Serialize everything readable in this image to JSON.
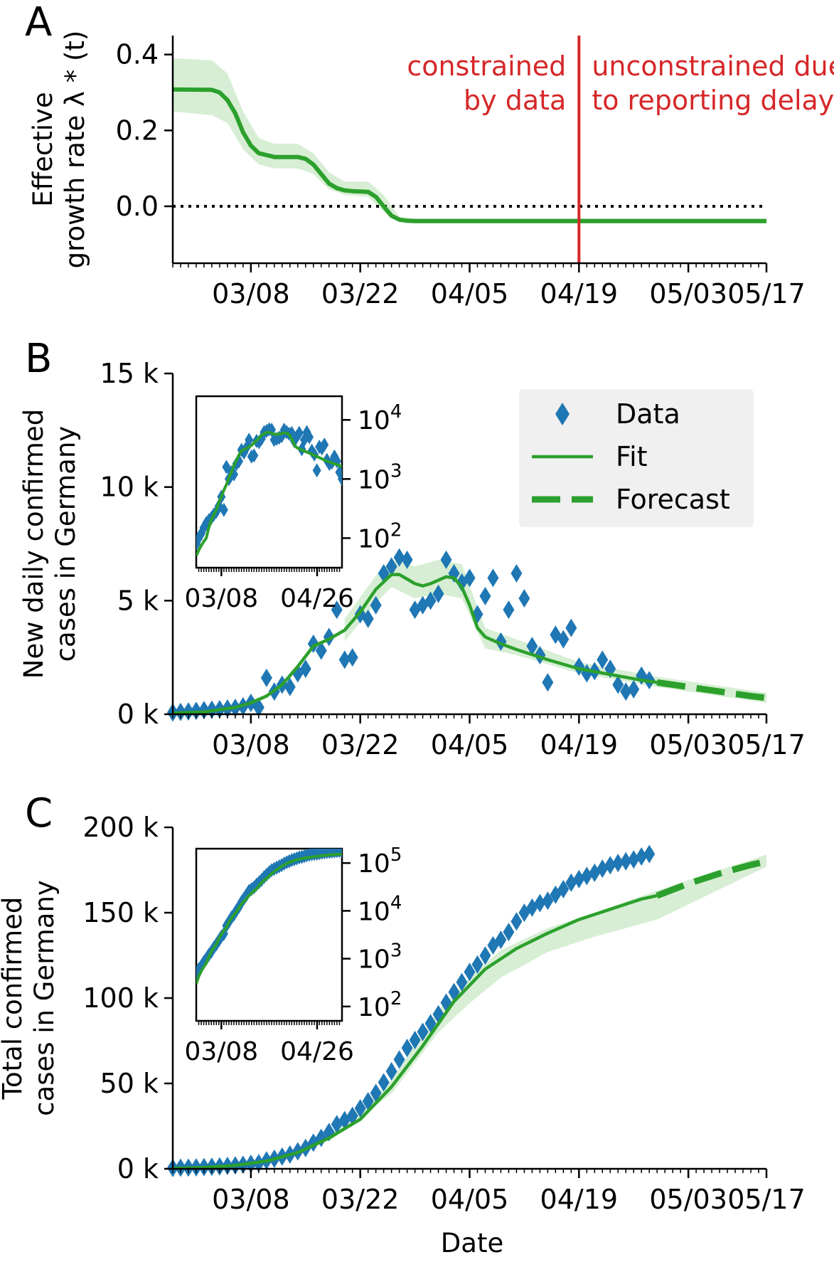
{
  "colors": {
    "data": "#1f77b4",
    "fit": "#2ca02c",
    "band": "#c9e8c6",
    "vline": "#d62728",
    "axis": "#000000",
    "legend_bg": "#f0f0f0"
  },
  "x_dates": [
    "03/08",
    "03/22",
    "04/05",
    "04/19",
    "05/03",
    "05/17"
  ],
  "x_label": "Date",
  "chart_data": [
    {
      "id": "A",
      "type": "line",
      "letter": "A",
      "ylabel_line1": "Effective",
      "ylabel_line2": "growth rate λ * (t)",
      "xlim_day": [
        -4,
        72
      ],
      "ylim": [
        -0.15,
        0.45
      ],
      "yticks": [
        0.0,
        0.2,
        0.4
      ],
      "ytick_labels": [
        "0.0",
        "0.2",
        "0.4"
      ],
      "xticks_day": [
        6,
        20,
        34,
        48,
        62,
        76
      ],
      "zero_line": 0,
      "vline_day": 48,
      "annotation_left": [
        "constrained",
        "by data"
      ],
      "annotation_right": [
        "unconstrained due",
        "to reporting delay"
      ],
      "fit": {
        "x": [
          -4,
          1,
          2,
          3,
          4,
          5,
          6,
          7,
          8,
          9,
          12,
          13,
          14,
          15,
          16,
          17,
          18,
          19,
          21,
          22,
          23,
          24,
          25,
          26,
          27,
          30,
          35,
          40,
          50,
          60,
          72
        ],
        "y": [
          0.308,
          0.307,
          0.3,
          0.28,
          0.245,
          0.195,
          0.16,
          0.14,
          0.135,
          0.13,
          0.13,
          0.125,
          0.11,
          0.085,
          0.06,
          0.048,
          0.042,
          0.04,
          0.038,
          0.025,
          0.0,
          -0.025,
          -0.035,
          -0.038,
          -0.039,
          -0.039,
          -0.039,
          -0.039,
          -0.039,
          -0.039,
          -0.039
        ]
      },
      "band": {
        "x": [
          -4,
          1,
          3,
          5,
          7,
          9,
          12,
          14,
          16,
          18,
          21,
          23,
          25,
          27,
          30,
          72
        ],
        "low": [
          0.25,
          0.24,
          0.22,
          0.15,
          0.11,
          0.1,
          0.1,
          0.085,
          0.045,
          0.03,
          0.025,
          -0.015,
          -0.042,
          -0.045,
          -0.045,
          -0.045
        ],
        "high": [
          0.39,
          0.385,
          0.35,
          0.25,
          0.18,
          0.165,
          0.165,
          0.14,
          0.09,
          0.065,
          0.065,
          0.03,
          -0.028,
          -0.032,
          -0.032,
          -0.032
        ]
      }
    },
    {
      "id": "B",
      "type": "scatter",
      "letter": "B",
      "ylabel_line1": "New daily confirmed",
      "ylabel_line2": "cases in Germany",
      "xlim_day": [
        -4,
        72
      ],
      "ylim": [
        0,
        15000
      ],
      "yticks": [
        0,
        5000,
        10000,
        15000
      ],
      "ytick_labels": [
        "0 k",
        "5 k",
        "10 k",
        "15 k"
      ],
      "xticks_day": [
        6,
        20,
        34,
        48,
        62,
        76
      ],
      "data": {
        "x": [
          -4,
          -3,
          -2,
          -1,
          0,
          1,
          2,
          3,
          4,
          5,
          6,
          7,
          8,
          9,
          10,
          11,
          12,
          13,
          14,
          15,
          16,
          17,
          18,
          19,
          20,
          21,
          22,
          23,
          24,
          25,
          26,
          27,
          28,
          29,
          30,
          31,
          32,
          33,
          34,
          35,
          36,
          37,
          38,
          39,
          40,
          41,
          42,
          43,
          44,
          45,
          46,
          47,
          48,
          49,
          50,
          51,
          52,
          53,
          54,
          55,
          56,
          57
        ],
        "y": [
          80,
          100,
          120,
          150,
          180,
          200,
          220,
          250,
          280,
          350,
          500,
          300,
          1600,
          1000,
          1300,
          1200,
          1800,
          2000,
          3100,
          2800,
          3400,
          4600,
          2400,
          2500,
          4400,
          4200,
          4800,
          6200,
          6500,
          6900,
          6800,
          4600,
          4800,
          5000,
          5300,
          6800,
          6200,
          5800,
          6000,
          4400,
          5200,
          6000,
          3200,
          4600,
          6200,
          5100,
          3000,
          2600,
          1400,
          3500,
          3300,
          3800,
          2100,
          1800,
          1900,
          2400,
          2000,
          1300,
          1000,
          1100,
          1700,
          1500
        ]
      },
      "fit": {
        "x": [
          -4,
          0,
          4,
          6,
          8,
          10,
          12,
          14,
          16,
          18,
          20,
          22,
          24,
          25,
          26,
          27,
          28,
          29,
          30,
          31,
          32,
          33,
          34,
          35,
          36,
          38,
          40,
          44,
          48,
          52,
          56,
          58
        ],
        "y": [
          50,
          100,
          300,
          500,
          800,
          1300,
          2100,
          3000,
          3300,
          3700,
          4500,
          5500,
          6150,
          6150,
          5950,
          5750,
          5650,
          5750,
          5900,
          6050,
          6000,
          5600,
          4800,
          3800,
          3400,
          3100,
          2850,
          2400,
          2000,
          1750,
          1500,
          1400
        ]
      },
      "forecast": {
        "x": [
          58,
          60,
          62,
          64,
          66,
          68,
          70,
          72
        ],
        "y": [
          1400,
          1300,
          1200,
          1100,
          1000,
          900,
          800,
          720
        ]
      },
      "band": {
        "x": [
          18,
          22,
          24,
          27,
          30,
          33,
          36,
          40,
          48,
          58,
          72
        ],
        "low": [
          3200,
          4900,
          5600,
          5100,
          5300,
          5100,
          2900,
          2600,
          1800,
          1200,
          500
        ],
        "high": [
          4200,
          6100,
          6800,
          6500,
          6800,
          6600,
          3800,
          3300,
          2300,
          1650,
          950
        ]
      },
      "legend": [
        {
          "label": "Data",
          "kind": "marker"
        },
        {
          "label": "Fit",
          "kind": "line"
        },
        {
          "label": "Forecast",
          "kind": "dashed"
        }
      ],
      "inset": {
        "scale": "log",
        "ylim_log10": [
          1.5,
          4.4
        ],
        "yticks_log10": [
          2,
          3,
          4
        ],
        "ytick_base": "10",
        "ytick_exp": [
          "2",
          "3",
          "4"
        ],
        "xlim_day": [
          -4,
          54
        ],
        "xtick_labels": [
          "03/08",
          "04/26"
        ],
        "xticks_day": [
          6,
          55
        ]
      }
    },
    {
      "id": "C",
      "type": "scatter",
      "letter": "C",
      "ylabel_line1": "Total confirmed",
      "ylabel_line2": "cases in Germany",
      "xlim_day": [
        -4,
        72
      ],
      "ylim": [
        0,
        200000
      ],
      "yticks": [
        0,
        50000,
        100000,
        150000,
        200000
      ],
      "ytick_labels": [
        "0 k",
        "50 k",
        "100 k",
        "150 k",
        "200 k"
      ],
      "xticks_day": [
        6,
        20,
        34,
        48,
        62,
        76
      ],
      "data": {
        "x": [
          -4,
          -3,
          -2,
          -1,
          0,
          1,
          2,
          3,
          4,
          5,
          6,
          7,
          8,
          9,
          10,
          11,
          12,
          13,
          14,
          15,
          16,
          17,
          18,
          19,
          20,
          21,
          22,
          23,
          24,
          25,
          26,
          27,
          28,
          29,
          30,
          31,
          32,
          33,
          34,
          35,
          36,
          37,
          38,
          39,
          40,
          41,
          42,
          43,
          44,
          45,
          46,
          47,
          48,
          49,
          50,
          51,
          52,
          53,
          54,
          55,
          56,
          57
        ],
        "y": [
          500,
          600,
          700,
          850,
          1000,
          1200,
          1400,
          1700,
          2000,
          2400,
          2900,
          3300,
          4900,
          5900,
          7200,
          8400,
          10200,
          12200,
          15300,
          18100,
          21500,
          26100,
          28500,
          31000,
          35400,
          39600,
          44400,
          50600,
          57100,
          64000,
          70800,
          75400,
          80200,
          85200,
          90500,
          97300,
          103500,
          109300,
          115300,
          119700,
          124900,
          130900,
          134100,
          138700,
          144900,
          150000,
          153000,
          155600,
          157000,
          160500,
          163800,
          167600,
          169700,
          171500,
          173400,
          175800,
          177800,
          179100,
          180100,
          181200,
          182900,
          184400
        ]
      },
      "fit": {
        "x": [
          -4,
          0,
          4,
          8,
          12,
          16,
          20,
          24,
          28,
          32,
          36,
          40,
          44,
          48,
          52,
          56,
          58
        ],
        "y": [
          300,
          800,
          2000,
          4500,
          9500,
          18000,
          29000,
          48000,
          72000,
          98000,
          117000,
          129000,
          138000,
          146000,
          152000,
          158000,
          160000
        ]
      },
      "forecast": {
        "x": [
          58,
          62,
          66,
          70,
          72
        ],
        "y": [
          160000,
          167000,
          173000,
          178000,
          180000
        ]
      },
      "band": {
        "x": [
          16,
          24,
          30,
          34,
          38,
          44,
          50,
          58,
          72
        ],
        "low": [
          16000,
          44000,
          80000,
          97000,
          112000,
          127000,
          136000,
          146000,
          177000
        ],
        "high": [
          20000,
          52000,
          93000,
          112000,
          128000,
          141000,
          150000,
          163000,
          184000
        ]
      },
      "inset": {
        "scale": "log",
        "ylim_log10": [
          1.7,
          5.3
        ],
        "yticks_log10": [
          2,
          3,
          4,
          5
        ],
        "ytick_base": "10",
        "ytick_exp": [
          "2",
          "3",
          "4",
          "5"
        ],
        "xlim_day": [
          -4,
          54
        ],
        "xtick_labels": [
          "03/08",
          "04/26"
        ],
        "xticks_day": [
          6,
          55
        ]
      }
    }
  ]
}
